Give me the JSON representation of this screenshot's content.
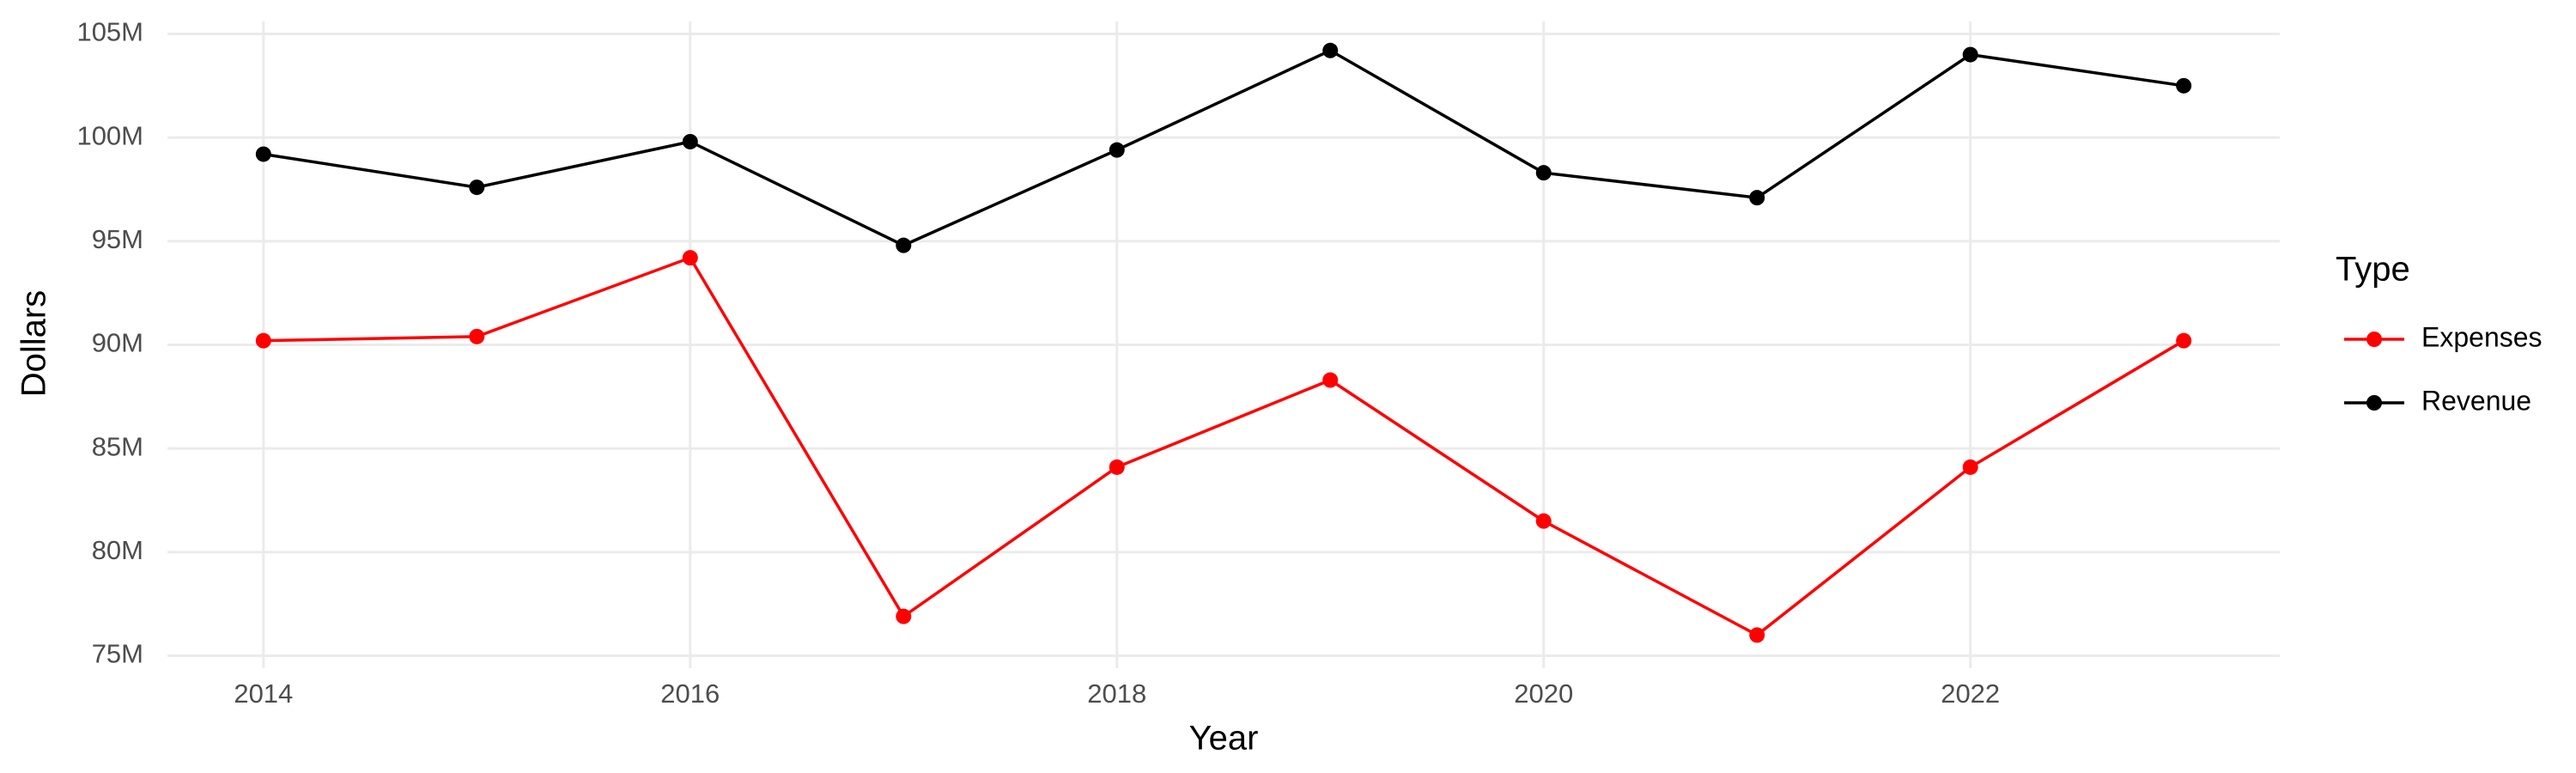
{
  "chart_data": {
    "type": "line",
    "x_label": "Year",
    "y_label": "Dollars",
    "x": [
      2014,
      2015,
      2016,
      2017,
      2018,
      2019,
      2020,
      2021,
      2022,
      2023
    ],
    "series": [
      {
        "name": "Expenses",
        "color": "#ff0000",
        "values": [
          90200000,
          90400000,
          94200000,
          76900000,
          84100000,
          88300000,
          81500000,
          76000000,
          84100000,
          90200000
        ]
      },
      {
        "name": "Revenue",
        "color": "#000000",
        "values": [
          99200000,
          97600000,
          99800000,
          94800000,
          99400000,
          104200000,
          98300000,
          97100000,
          104000000,
          102500000
        ]
      }
    ],
    "xlim": [
      2013.55,
      2023.45
    ],
    "xticks": [
      2014,
      2016,
      2018,
      2020,
      2022
    ],
    "ylim": [
      74400000,
      105600000
    ],
    "yticks": [
      {
        "value": 75000000,
        "label": "75M"
      },
      {
        "value": 80000000,
        "label": "80M"
      },
      {
        "value": 85000000,
        "label": "85M"
      },
      {
        "value": 90000000,
        "label": "90M"
      },
      {
        "value": 95000000,
        "label": "95M"
      },
      {
        "value": 100000000,
        "label": "100M"
      },
      {
        "value": 105000000,
        "label": "105M"
      }
    ],
    "grid": true,
    "legend_title": "Type",
    "legend_position": "right"
  }
}
